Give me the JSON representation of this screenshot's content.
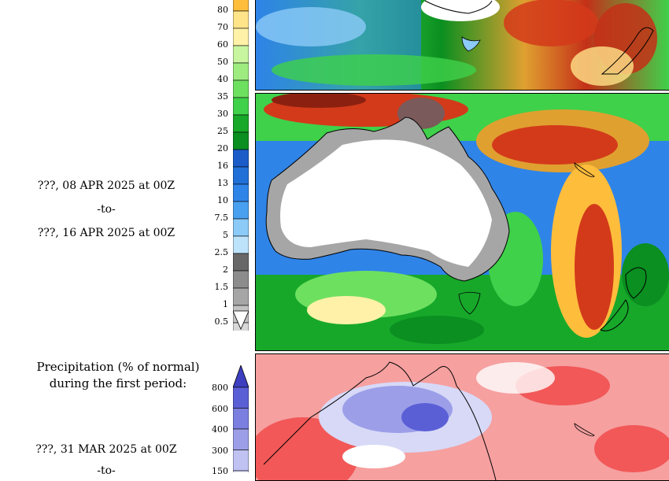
{
  "period2": {
    "date_start": "???, 08 APR 2025 at 00Z",
    "to": "-to-",
    "date_end": "???, 16 APR 2025 at 00Z"
  },
  "top_scale": {
    "labels": [
      "80",
      "70",
      "60",
      "50",
      "40",
      "35",
      "30",
      "25",
      "20",
      "16",
      "13",
      "10",
      "7.5",
      "5",
      "2.5",
      "2",
      "1.5",
      "1",
      "0.5"
    ],
    "colors": [
      "#ffbd3c",
      "#ffe48a",
      "#fff2a8",
      "#c8f5a0",
      "#9eec80",
      "#6ee060",
      "#3fd14a",
      "#17a82a",
      "#0a8f20",
      "#1b5cc8",
      "#2170d8",
      "#2f84e8",
      "#4aa0f0",
      "#8ccaf8",
      "#bde3fb",
      "#686868",
      "#8c8c8c",
      "#a6a6a6",
      "#c2c2c2",
      "#d8d8d8"
    ]
  },
  "percent_panel": {
    "title_line1": "Precipitation (% of normal)",
    "title_line2": "during the first period:",
    "date_start": "???, 31 MAR 2025 at 00Z",
    "to": "-to-",
    "scale_labels": [
      "800",
      "600",
      "400",
      "300",
      "150"
    ],
    "scale_colors": [
      "#5b5fd6",
      "#7b7fe0",
      "#9c9fe8",
      "#c0c2f2",
      "#e2e3fa"
    ]
  }
}
